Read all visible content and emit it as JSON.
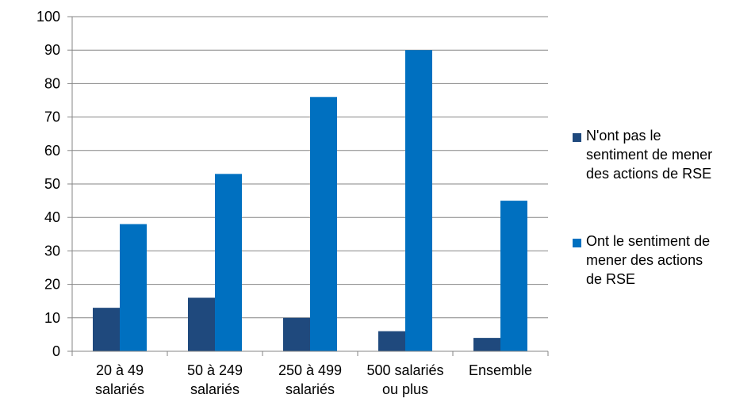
{
  "chart_data": {
    "type": "bar",
    "categories": [
      [
        "20 à 49",
        "salariés"
      ],
      [
        "50 à 249",
        "salariés"
      ],
      [
        "250 à 499",
        "salariés"
      ],
      [
        "500 salariés",
        "ou plus"
      ],
      [
        "Ensemble"
      ]
    ],
    "series": [
      {
        "name": [
          "N'ont pas le",
          "sentiment de mener",
          "des actions de RSE"
        ],
        "color": "#1f497d",
        "values": [
          13,
          16,
          10,
          6,
          4
        ]
      },
      {
        "name": [
          "Ont le sentiment de",
          "mener des actions",
          "de RSE"
        ],
        "color": "#0070c0",
        "values": [
          38,
          53,
          76,
          90,
          45
        ]
      }
    ],
    "y_ticks": [
      0,
      10,
      20,
      30,
      40,
      50,
      60,
      70,
      80,
      90,
      100
    ],
    "ylim": [
      0,
      100
    ],
    "grid": true,
    "legend_position": "right"
  }
}
